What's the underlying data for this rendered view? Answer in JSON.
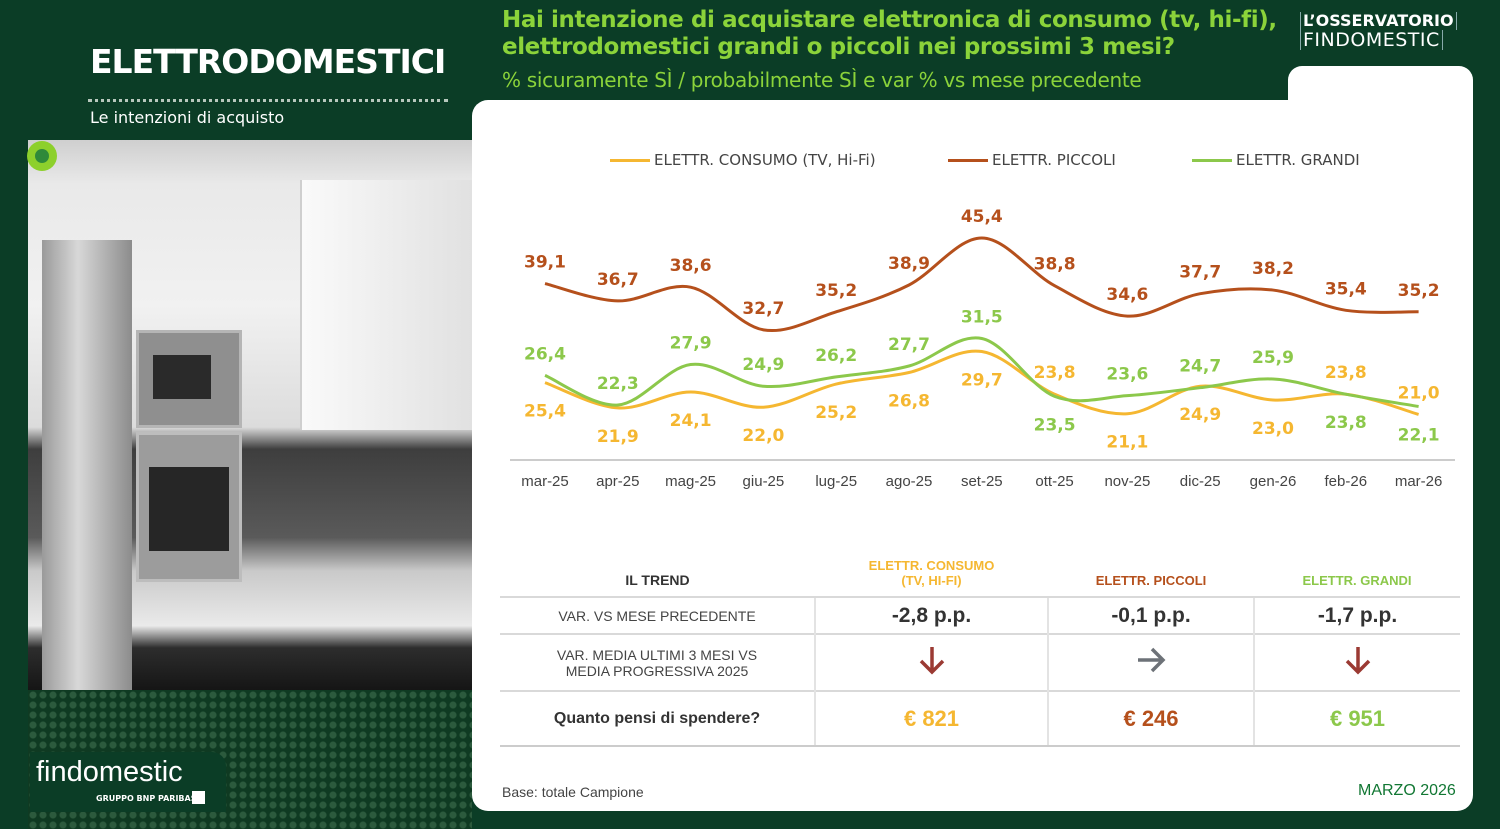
{
  "header": {
    "title": "ELETTRODOMESTICI",
    "subtitle": "Le intenzioni di acquisto",
    "brand_line1": "L’OSSERVATORIO",
    "brand_line2": "FINDOMESTIC"
  },
  "question": {
    "title": "Hai intenzione di acquistare elettronica di consumo (tv, hi-fi), elettrodomestici grandi o piccoli nei prossimi 3 mesi?",
    "subtitle": "% sicuramente SÌ / probabilmente SÌ e var % vs mese precedente"
  },
  "logo": {
    "name": "findomestic",
    "group": "GRUPPO BNP PARIBAS"
  },
  "colors": {
    "consumo": "#f5b731",
    "piccoli": "#b5501c",
    "grandi": "#8cc84b",
    "bg": "#0b3d26"
  },
  "chart_data": {
    "type": "line",
    "title": "",
    "categories": [
      "mar-25",
      "apr-25",
      "mag-25",
      "giu-25",
      "lug-25",
      "ago-25",
      "set-25",
      "ott-25",
      "nov-25",
      "dic-25",
      "gen-26",
      "feb-26",
      "mar-26"
    ],
    "series": [
      {
        "name": "ELETTR. CONSUMO (TV, Hi-Fi)",
        "color": "#f5b731",
        "values": [
          25.4,
          21.9,
          24.1,
          22.0,
          25.2,
          26.8,
          29.7,
          23.8,
          21.1,
          24.9,
          23.0,
          23.8,
          21.0
        ],
        "labels": [
          "25,4",
          "21,9",
          "24,1",
          "22,0",
          "25,2",
          "26,8",
          "29,7",
          "23,8",
          "21,1",
          "24,9",
          "23,0",
          "23,8",
          "21,0"
        ]
      },
      {
        "name": "ELETTR. PICCOLI",
        "color": "#b5501c",
        "values": [
          39.1,
          36.7,
          38.6,
          32.7,
          35.2,
          38.9,
          45.4,
          38.8,
          34.6,
          37.7,
          38.2,
          35.4,
          35.2
        ],
        "labels": [
          "39,1",
          "36,7",
          "38,6",
          "32,7",
          "35,2",
          "38,9",
          "45,4",
          "38,8",
          "34,6",
          "37,7",
          "38,2",
          "35,4",
          "35,2"
        ]
      },
      {
        "name": "ELETTR. GRANDI",
        "color": "#8cc84b",
        "values": [
          26.4,
          22.3,
          27.9,
          24.9,
          26.2,
          27.7,
          31.5,
          23.5,
          23.6,
          24.7,
          25.9,
          23.8,
          22.1
        ],
        "labels": [
          "26,4",
          "22,3",
          "27,9",
          "24,9",
          "26,2",
          "27,7",
          "31,5",
          "23,5",
          "23,6",
          "24,7",
          "25,9",
          "23,8",
          "22,1"
        ]
      }
    ],
    "ylim": [
      14.7,
      45.4
    ],
    "grid": false,
    "legend": "top",
    "xlabel": "",
    "ylabel": ""
  },
  "table": {
    "header": [
      "IL TREND",
      "ELETTR. CONSUMO",
      "(TV, HI-FI)",
      "ELETTR. PICCOLI",
      "ELETTR. GRANDI"
    ],
    "row1": {
      "label": "VAR. VS MESE PRECEDENTE",
      "values": [
        "-2,8 p.p.",
        "-0,1 p.p.",
        "-1,7 p.p."
      ]
    },
    "row2": {
      "label1": "VAR.  MEDIA ULTIMI 3 MESI VS",
      "label2": "MEDIA PROGRESSIVA  2025",
      "trends": [
        "down",
        "flat",
        "down"
      ]
    },
    "row3": {
      "label": "Quanto pensi di spendere?",
      "values": [
        "€ 821",
        "€ 246",
        "€ 951"
      ]
    }
  },
  "footer": {
    "base": "Base: totale Campione",
    "date": "MARZO 2026"
  }
}
